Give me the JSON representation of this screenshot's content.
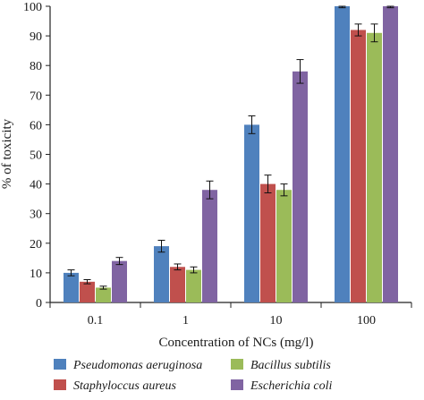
{
  "chart_data": {
    "type": "bar",
    "title": "",
    "xlabel": "Concentration of NCs (mg/l)",
    "ylabel": "% of toxicity",
    "ylim": [
      0,
      100
    ],
    "yticks": [
      "0",
      "10",
      "20",
      "30",
      "40",
      "50",
      "60",
      "70",
      "80",
      "90",
      "100"
    ],
    "categories": [
      "0.1",
      "1",
      "10",
      "100"
    ],
    "grid": false,
    "legend_position": "bottom",
    "series": [
      {
        "name": "Pseudomonas aeruginosa",
        "color": "#4f81bd",
        "values": [
          10,
          19,
          60,
          100
        ],
        "errors": [
          1,
          2,
          3,
          0.5
        ]
      },
      {
        "name": "Staphyloccus aureus",
        "color": "#c0504d",
        "values": [
          7,
          12,
          40,
          92
        ],
        "errors": [
          0.7,
          1,
          3,
          2
        ]
      },
      {
        "name": "Bacillus subtilis",
        "color": "#9bbb59",
        "values": [
          5,
          11,
          38,
          91
        ],
        "errors": [
          0.5,
          1,
          2,
          3
        ]
      },
      {
        "name": "Escherichia coli",
        "color": "#8064a2",
        "values": [
          14,
          38,
          78,
          100
        ],
        "errors": [
          1.2,
          3,
          4,
          0.5
        ]
      }
    ]
  }
}
